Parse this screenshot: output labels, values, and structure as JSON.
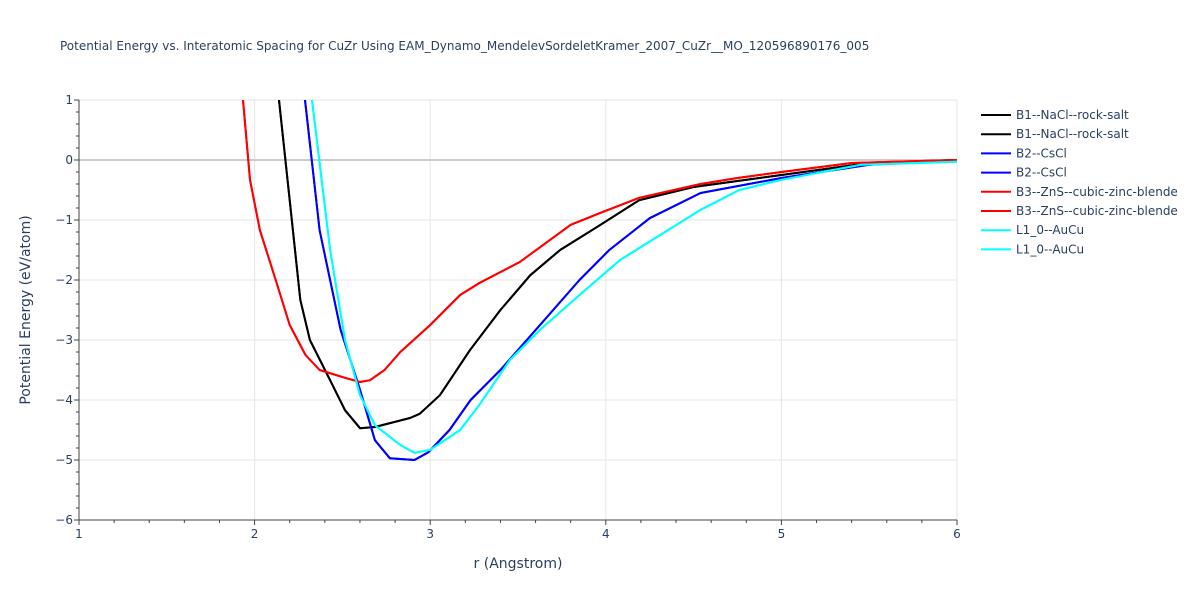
{
  "chart_data": {
    "type": "line",
    "title": "Potential Energy vs. Interatomic Spacing for CuZr Using EAM_Dynamo_MendelevSordeletKramer_2007_CuZr__MO_120596890176_005",
    "xlabel": "r (Angstrom)",
    "ylabel": "Potential Energy (eV/atom)",
    "xlim": [
      1,
      6
    ],
    "ylim": [
      -6,
      1
    ],
    "xticks": [
      1,
      2,
      3,
      4,
      5,
      6
    ],
    "xtick_labels": [
      "1",
      "2",
      "3",
      "4",
      "5",
      "6"
    ],
    "yticks": [
      1,
      0,
      -1,
      -2,
      -3,
      -4,
      -5,
      -6
    ],
    "ytick_labels": [
      "1",
      "0",
      "−1",
      "−2",
      "−3",
      "−4",
      "−5",
      "−6"
    ],
    "grid": true,
    "legend_position": "right",
    "series": [
      {
        "name": "B1--NaCl--rock-salt",
        "color": "#000000",
        "x": [
          2.139,
          2.2,
          2.26,
          2.315,
          2.43,
          2.515,
          2.6,
          2.685,
          2.885,
          2.94,
          3.055,
          3.226,
          3.4,
          3.57,
          3.74,
          3.97,
          4.19,
          4.5,
          5.0,
          5.5,
          6.0
        ],
        "y": [
          1,
          -0.67,
          -2.33,
          -3,
          -3.67,
          -4.17,
          -4.47,
          -4.45,
          -4.3,
          -4.23,
          -3.92,
          -3.17,
          -2.5,
          -1.92,
          -1.5,
          -1.08,
          -0.67,
          -0.45,
          -0.25,
          -0.05,
          0
        ]
      },
      {
        "name": "B1--NaCl--rock-salt",
        "color": "#000000",
        "x": [
          2.139,
          2.2,
          2.26,
          2.315,
          2.43,
          2.515,
          2.6,
          2.685,
          2.885,
          2.94,
          3.055,
          3.226,
          3.4,
          3.57,
          3.74,
          3.97,
          4.19,
          4.5,
          5.0,
          5.5,
          6.0
        ],
        "y": [
          1,
          -0.67,
          -2.33,
          -3,
          -3.67,
          -4.17,
          -4.47,
          -4.45,
          -4.3,
          -4.23,
          -3.92,
          -3.17,
          -2.5,
          -1.92,
          -1.5,
          -1.08,
          -0.67,
          -0.45,
          -0.25,
          -0.05,
          0
        ]
      },
      {
        "name": "B2--CsCl",
        "color": "#0000ff",
        "x": [
          2.287,
          2.37,
          2.49,
          2.6,
          2.685,
          2.77,
          2.91,
          2.99,
          3.11,
          3.23,
          3.4,
          3.625,
          3.85,
          4.02,
          4.25,
          4.54,
          5.0,
          5.5,
          6.0
        ],
        "y": [
          1,
          -1.17,
          -2.83,
          -3.83,
          -4.67,
          -4.97,
          -5.0,
          -4.87,
          -4.5,
          -4,
          -3.5,
          -2.75,
          -2,
          -1.5,
          -0.97,
          -0.55,
          -0.3,
          -0.08,
          0
        ]
      },
      {
        "name": "B2--CsCl",
        "color": "#0000ff",
        "x": [
          2.287,
          2.37,
          2.49,
          2.6,
          2.685,
          2.77,
          2.91,
          2.99,
          3.11,
          3.23,
          3.4,
          3.625,
          3.85,
          4.02,
          4.25,
          4.54,
          5.0,
          5.5,
          6.0
        ],
        "y": [
          1,
          -1.17,
          -2.83,
          -3.83,
          -4.67,
          -4.97,
          -5.0,
          -4.87,
          -4.5,
          -4,
          -3.5,
          -2.75,
          -2,
          -1.5,
          -0.97,
          -0.55,
          -0.3,
          -0.08,
          0
        ]
      },
      {
        "name": "B3--ZnS--cubic-zinc-blende",
        "color": "#ff0000",
        "x": [
          1.934,
          1.974,
          2.03,
          2.12,
          2.2,
          2.29,
          2.37,
          2.515,
          2.6,
          2.657,
          2.74,
          2.83,
          3.0,
          3.17,
          3.28,
          3.51,
          3.8,
          3.97,
          4.19,
          4.54,
          4.75,
          5.0,
          5.4,
          6.0
        ],
        "y": [
          1,
          -0.33,
          -1.17,
          -2,
          -2.75,
          -3.25,
          -3.5,
          -3.63,
          -3.7,
          -3.67,
          -3.5,
          -3.2,
          -2.75,
          -2.25,
          -2.05,
          -1.7,
          -1.08,
          -0.88,
          -0.63,
          -0.4,
          -0.3,
          -0.2,
          -0.05,
          0
        ]
      },
      {
        "name": "B3--ZnS--cubic-zinc-blende",
        "color": "#ff0000",
        "x": [
          1.934,
          1.974,
          2.03,
          2.12,
          2.2,
          2.29,
          2.37,
          2.515,
          2.6,
          2.657,
          2.74,
          2.83,
          3.0,
          3.17,
          3.28,
          3.51,
          3.8,
          3.97,
          4.19,
          4.54,
          4.75,
          5.0,
          5.4,
          6.0
        ],
        "y": [
          1,
          -0.33,
          -1.17,
          -2,
          -2.75,
          -3.25,
          -3.5,
          -3.63,
          -3.7,
          -3.67,
          -3.5,
          -3.2,
          -2.75,
          -2.25,
          -2.05,
          -1.7,
          -1.08,
          -0.88,
          -0.63,
          -0.4,
          -0.3,
          -0.2,
          -0.05,
          0
        ]
      },
      {
        "name": "L1_0--AuCu",
        "color": "#00ffff",
        "x": [
          2.327,
          2.43,
          2.515,
          2.6,
          2.685,
          2.83,
          2.91,
          3.0,
          3.17,
          3.28,
          3.455,
          3.625,
          3.85,
          4.08,
          4.31,
          4.54,
          4.76,
          5.0,
          5.45,
          6.0
        ],
        "y": [
          1,
          -1.5,
          -3,
          -3.92,
          -4.42,
          -4.75,
          -4.88,
          -4.83,
          -4.5,
          -4.08,
          -3.33,
          -2.83,
          -2.25,
          -1.67,
          -1.25,
          -0.83,
          -0.5,
          -0.33,
          -0.08,
          -0.03
        ]
      },
      {
        "name": "L1_0--AuCu",
        "color": "#00ffff",
        "x": [
          2.327,
          2.43,
          2.515,
          2.6,
          2.685,
          2.83,
          2.91,
          3.0,
          3.17,
          3.28,
          3.455,
          3.625,
          3.85,
          4.08,
          4.31,
          4.54,
          4.76,
          5.0,
          5.45,
          6.0
        ],
        "y": [
          1,
          -1.5,
          -3,
          -3.92,
          -4.42,
          -4.75,
          -4.88,
          -4.83,
          -4.5,
          -4.08,
          -3.33,
          -2.83,
          -2.25,
          -1.67,
          -1.25,
          -0.83,
          -0.5,
          -0.33,
          -0.08,
          -0.03
        ]
      }
    ]
  }
}
